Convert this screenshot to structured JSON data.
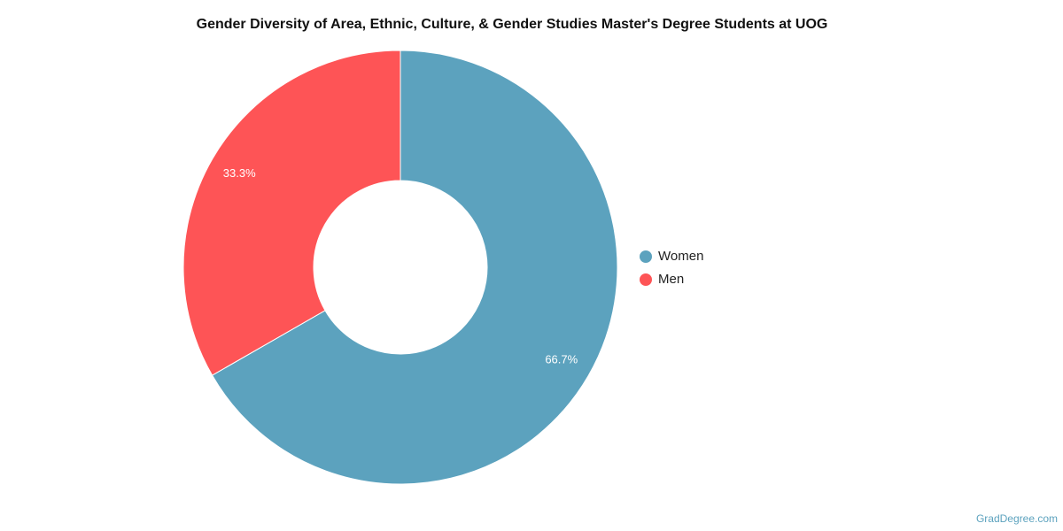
{
  "chart_data": {
    "type": "donut",
    "title": "Gender Diversity of Area, Ethnic, Culture, & Gender Studies Master's Degree Students at UOG",
    "categories": [
      "Women",
      "Men"
    ],
    "values": [
      66.7,
      33.3
    ],
    "value_labels": [
      "66.7%",
      "33.3%"
    ],
    "colors": [
      "#5ca2be",
      "#fe5456"
    ],
    "legend": "right",
    "source": "GradDegree.com"
  }
}
